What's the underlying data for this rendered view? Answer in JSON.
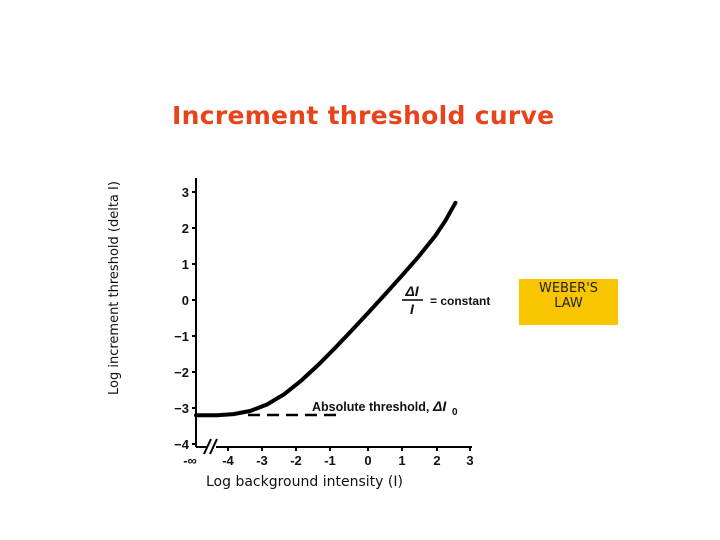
{
  "chart_data": {
    "type": "line",
    "title": "Increment threshold curve",
    "xlabel": "Log background intensity (I)",
    "ylabel": "Log increment threshold (delta I)",
    "xlim": [
      -5.3,
      3
    ],
    "ylim": [
      -4,
      3.5
    ],
    "x_ticks": [
      "-∞",
      "-4",
      "-3",
      "-2",
      "-1",
      "0",
      "1",
      "2",
      "3"
    ],
    "y_ticks": [
      "3",
      "2",
      "1",
      "0",
      "−1",
      "−2",
      "−3",
      "−4"
    ],
    "series": [
      {
        "x": [
          -5.3,
          -4.5,
          -4.0,
          -3.5,
          -3.0,
          -2.5,
          -2.0,
          -1.5,
          -1.0,
          -0.5,
          0.0,
          0.5,
          1.0,
          1.5,
          2.0,
          2.3,
          2.6
        ],
        "y": [
          -3.2,
          -3.2,
          -3.17,
          -3.08,
          -2.9,
          -2.62,
          -2.25,
          -1.82,
          -1.35,
          -0.86,
          -0.36,
          0.15,
          0.67,
          1.2,
          1.78,
          2.2,
          2.7
        ]
      }
    ],
    "annotations": {
      "weber_fraction": {
        "numerator": "ΔI",
        "denominator": "I",
        "text": "= constant"
      },
      "absolute_threshold": {
        "text": "Absolute threshold,",
        "symbol": "ΔI",
        "subscript": "0"
      }
    }
  },
  "callout": {
    "line1": "WEBER'S",
    "line2": "LAW",
    "color": "#f7c600"
  },
  "colors": {
    "title": "#e8431a"
  }
}
